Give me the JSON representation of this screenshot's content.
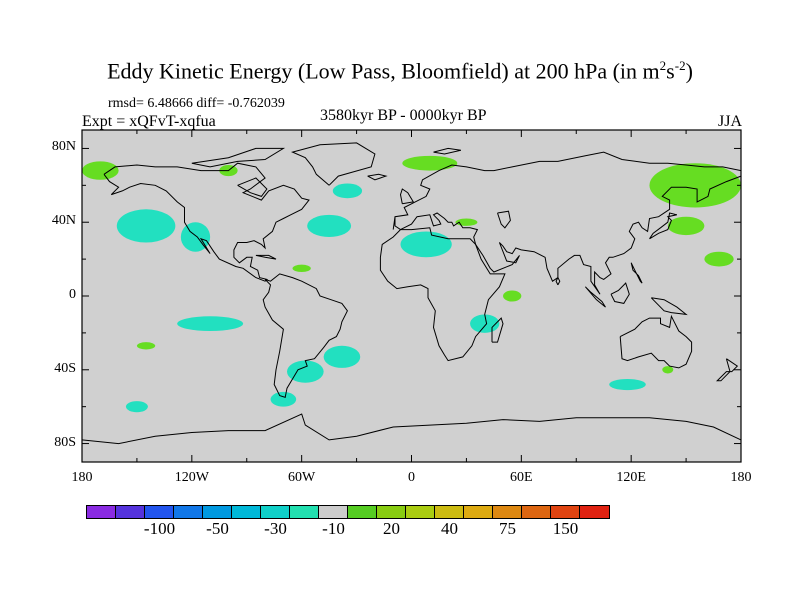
{
  "title": {
    "main": "Eddy Kinetic Energy (Low Pass, Bloomfield) at 200 hPa (in m",
    "sup1": "2",
    "mid": "s",
    "sup2": "-2",
    "end": ")"
  },
  "stats": "rmsd= 6.48666 diff= -0.762039",
  "expt": "Expt = xQFvT-xqfua",
  "period": "3580kyr BP - 0000kyr BP",
  "season": "JJA",
  "axes": {
    "y_ticks": [
      {
        "value": 80,
        "label": "80N"
      },
      {
        "value": 40,
        "label": "40N"
      },
      {
        "value": 0,
        "label": "0"
      },
      {
        "value": -40,
        "label": "40S"
      },
      {
        "value": -80,
        "label": "80S"
      }
    ],
    "x_ticks": [
      {
        "value": -180,
        "label": "180"
      },
      {
        "value": -120,
        "label": "120W"
      },
      {
        "value": -60,
        "label": "60W"
      },
      {
        "value": 0,
        "label": "0"
      },
      {
        "value": 60,
        "label": "60E"
      },
      {
        "value": 120,
        "label": "120E"
      },
      {
        "value": 180,
        "label": "180"
      }
    ],
    "lon_range": [
      -180,
      180
    ],
    "lat_range": [
      -90,
      90
    ]
  },
  "colors": {
    "land_ocean_neutral": "#d0d0d0",
    "coast": "#000000",
    "teal": "#22e0c0",
    "green": "#66dd22",
    "yellow_green": "#aadd11",
    "yellow": "#dddd11"
  },
  "colorbar": {
    "swatches": [
      "#8a2be2",
      "#5533dd",
      "#2255ee",
      "#1177e8",
      "#0099e0",
      "#00b8d8",
      "#10d0c8",
      "#22e0b0",
      "#cccccc",
      "#55cc22",
      "#88cc11",
      "#aacc11",
      "#ccbb11",
      "#ddaa11",
      "#dd8811",
      "#dd6611",
      "#e04411",
      "#e02211"
    ],
    "labels": [
      {
        "after_swatch": 2,
        "text": "-100"
      },
      {
        "after_swatch": 4,
        "text": "-50"
      },
      {
        "after_swatch": 6,
        "text": "-30"
      },
      {
        "after_swatch": 8,
        "text": "-10"
      },
      {
        "after_swatch": 10,
        "text": "20"
      },
      {
        "after_swatch": 12,
        "text": "40"
      },
      {
        "after_swatch": 14,
        "text": "75"
      },
      {
        "after_swatch": 16,
        "text": "150"
      }
    ]
  },
  "anomaly_regions": [
    {
      "name": "n-pacific",
      "color": "teal",
      "lon": -145,
      "lat": 38,
      "rlon": 16,
      "rlat": 9
    },
    {
      "name": "n-pacific-east",
      "color": "teal",
      "lon": -118,
      "lat": 32,
      "rlon": 8,
      "rlat": 8
    },
    {
      "name": "n-atlantic",
      "color": "teal",
      "lon": -45,
      "lat": 38,
      "rlon": 12,
      "rlat": 6
    },
    {
      "name": "greenland-sea",
      "color": "teal",
      "lon": -35,
      "lat": 57,
      "rlon": 8,
      "rlat": 4
    },
    {
      "name": "sahara",
      "color": "teal",
      "lon": 8,
      "lat": 28,
      "rlon": 14,
      "rlat": 7
    },
    {
      "name": "s-pacific",
      "color": "teal",
      "lon": -110,
      "lat": -15,
      "rlon": 18,
      "rlat": 4
    },
    {
      "name": "s-pacific-south",
      "color": "teal",
      "lon": -38,
      "lat": -33,
      "rlon": 10,
      "rlat": 6
    },
    {
      "name": "s-indian",
      "color": "teal",
      "lon": 40,
      "lat": -15,
      "rlon": 8,
      "rlat": 5
    },
    {
      "name": "s-ocean",
      "color": "teal",
      "lon": -70,
      "lat": -56,
      "rlon": 7,
      "rlat": 4
    },
    {
      "name": "s-ocean-west",
      "color": "teal",
      "lon": -150,
      "lat": -60,
      "rlon": 6,
      "rlat": 3
    },
    {
      "name": "sw-atlantic",
      "color": "teal",
      "lon": -58,
      "lat": -41,
      "rlon": 10,
      "rlat": 6
    },
    {
      "name": "s-indian-east",
      "color": "teal",
      "lon": 118,
      "lat": -48,
      "rlon": 10,
      "rlat": 3
    },
    {
      "name": "alaska",
      "color": "green",
      "lon": -170,
      "lat": 68,
      "rlon": 10,
      "rlat": 5
    },
    {
      "name": "canada",
      "color": "green",
      "lon": -100,
      "lat": 68,
      "rlon": 5,
      "rlat": 3
    },
    {
      "name": "siberia",
      "color": "green",
      "lon": 155,
      "lat": 60,
      "rlon": 25,
      "rlat": 12
    },
    {
      "name": "kamchatka",
      "color": "green",
      "lon": 150,
      "lat": 38,
      "rlon": 10,
      "rlat": 5
    },
    {
      "name": "nw-pacific",
      "color": "green",
      "lon": 168,
      "lat": 20,
      "rlon": 8,
      "rlat": 4
    },
    {
      "name": "arabia",
      "color": "green",
      "lon": 55,
      "lat": 0,
      "rlon": 5,
      "rlat": 3
    },
    {
      "name": "central-atlantic",
      "color": "green",
      "lon": -60,
      "lat": 15,
      "rlon": 5,
      "rlat": 2
    },
    {
      "name": "s-pacific-west",
      "color": "green",
      "lon": -145,
      "lat": -27,
      "rlon": 5,
      "rlat": 2
    },
    {
      "name": "scandinavia",
      "color": "green",
      "lon": 10,
      "lat": 72,
      "rlon": 15,
      "rlat": 4
    },
    {
      "name": "mediterranean",
      "color": "green",
      "lon": 30,
      "lat": 40,
      "rlon": 6,
      "rlat": 2
    },
    {
      "name": "s-indian-far",
      "color": "green",
      "lon": 140,
      "lat": -40,
      "rlon": 3,
      "rlat": 2
    }
  ]
}
